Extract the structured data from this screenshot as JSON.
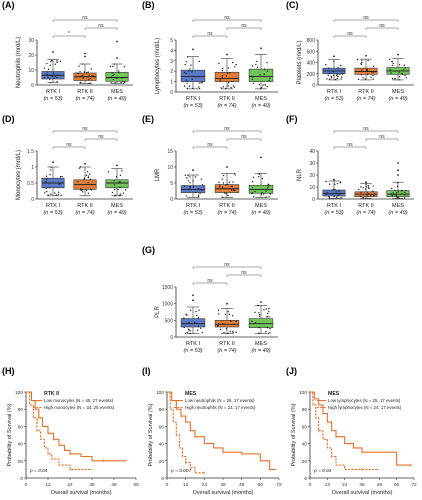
{
  "colors": {
    "rtk1": "#5b78c4",
    "rtk2": "#e07d3a",
    "mes": "#72c45a",
    "km": "#e0702a",
    "axis": "#333333",
    "bracket": "#555555"
  },
  "groups": [
    {
      "name": "RTK I",
      "n_label": "(n = 53)"
    },
    {
      "name": "RTK II",
      "n_label": "(n = 74)"
    },
    {
      "name": "MES",
      "n_label": "(n = 49)"
    }
  ],
  "chart_data": [
    {
      "type": "box",
      "panel": "(A)",
      "ylabel": "Neutrophils (mrd/L)",
      "ylim": [
        0,
        30
      ],
      "yticks": [
        0,
        10,
        20,
        30
      ],
      "boxes": [
        {
          "q1": 4,
          "median": 6.5,
          "q3": 9,
          "wlo": 1.5,
          "whi": 17
        },
        {
          "q1": 3,
          "median": 5.5,
          "q3": 8,
          "wlo": 1,
          "whi": 14
        },
        {
          "q1": 2.5,
          "median": 5,
          "q3": 8.5,
          "wlo": 1,
          "whi": 14
        }
      ],
      "outliers": [
        [
          22
        ],
        [
          19,
          21
        ],
        [
          18,
          29
        ]
      ],
      "significance": [
        {
          "a": 0,
          "b": 1,
          "label": "*"
        },
        {
          "a": 0,
          "b": 2,
          "label": "ns"
        },
        {
          "a": 1,
          "b": 2,
          "label": "ns"
        }
      ]
    },
    {
      "type": "box",
      "panel": "(B)",
      "ylabel": "Lymphocytes (mrd/L)",
      "ylim": [
        0,
        5
      ],
      "yticks": [
        0,
        1,
        2,
        3,
        4,
        5
      ],
      "boxes": [
        {
          "q1": 1.0,
          "median": 1.5,
          "q3": 2.1,
          "wlo": 0.3,
          "whi": 3.4
        },
        {
          "q1": 1.0,
          "median": 1.3,
          "q3": 1.9,
          "wlo": 0.3,
          "whi": 3.2
        },
        {
          "q1": 1.0,
          "median": 1.5,
          "q3": 2.2,
          "wlo": 0.3,
          "whi": 3.6
        }
      ],
      "outliers": [
        [
          4.1
        ],
        [
          3.6
        ],
        [
          4.2
        ]
      ],
      "significance": [
        {
          "a": 0,
          "b": 1,
          "label": "ns"
        },
        {
          "a": 0,
          "b": 2,
          "label": "ns"
        },
        {
          "a": 1,
          "b": 2,
          "label": "ns"
        }
      ]
    },
    {
      "type": "box",
      "panel": "(C)",
      "ylabel": "Platelets (mrd/L)",
      "ylim": [
        0,
        800
      ],
      "yticks": [
        0,
        200,
        400,
        600,
        800
      ],
      "boxes": [
        {
          "q1": 200,
          "median": 250,
          "q3": 300,
          "wlo": 90,
          "whi": 450
        },
        {
          "q1": 190,
          "median": 240,
          "q3": 300,
          "wlo": 90,
          "whi": 460
        },
        {
          "q1": 190,
          "median": 250,
          "q3": 310,
          "wlo": 90,
          "whi": 470
        }
      ],
      "outliers": [
        [
          510
        ],
        [
          520
        ],
        [
          540
        ]
      ],
      "significance": [
        {
          "a": 0,
          "b": 1,
          "label": "ns"
        },
        {
          "a": 0,
          "b": 2,
          "label": "ns"
        },
        {
          "a": 1,
          "b": 2,
          "label": "ns"
        }
      ]
    },
    {
      "type": "box",
      "panel": "(D)",
      "ylabel": "Monocytes (mrd/L)",
      "ylim": [
        0,
        1.5
      ],
      "yticks": [
        0,
        0.5,
        1,
        1.5
      ],
      "boxes": [
        {
          "q1": 0.35,
          "median": 0.5,
          "q3": 0.65,
          "wlo": 0.1,
          "whi": 1.0
        },
        {
          "q1": 0.3,
          "median": 0.45,
          "q3": 0.6,
          "wlo": 0.1,
          "whi": 1.0
        },
        {
          "q1": 0.35,
          "median": 0.5,
          "q3": 0.6,
          "wlo": 0.1,
          "whi": 0.95
        }
      ],
      "outliers": [
        [
          1.15
        ],
        [
          1.1
        ],
        [
          1.05
        ]
      ],
      "significance": [
        {
          "a": 0,
          "b": 1,
          "label": "ns"
        },
        {
          "a": 0,
          "b": 2,
          "label": "ns"
        },
        {
          "a": 1,
          "b": 2,
          "label": "ns"
        }
      ]
    },
    {
      "type": "box",
      "panel": "(E)",
      "ylabel": "LMR",
      "ylim": [
        0,
        15
      ],
      "yticks": [
        0,
        5,
        10,
        15
      ],
      "boxes": [
        {
          "q1": 2,
          "median": 3,
          "q3": 4.2,
          "wlo": 0.5,
          "whi": 7.5
        },
        {
          "q1": 2,
          "median": 3.2,
          "q3": 4.5,
          "wlo": 0.5,
          "whi": 8
        },
        {
          "q1": 1.8,
          "median": 3,
          "q3": 4.3,
          "wlo": 0.5,
          "whi": 8
        }
      ],
      "outliers": [
        [
          9
        ],
        [
          10
        ],
        [
          13
        ]
      ],
      "significance": [
        {
          "a": 0,
          "b": 1,
          "label": "ns"
        },
        {
          "a": 0,
          "b": 2,
          "label": "ns"
        },
        {
          "a": 1,
          "b": 2,
          "label": "ns"
        }
      ]
    },
    {
      "type": "box",
      "panel": "(F)",
      "ylabel": "NLR",
      "ylim": [
        0,
        40
      ],
      "yticks": [
        0,
        10,
        20,
        30,
        40
      ],
      "boxes": [
        {
          "q1": 2.5,
          "median": 4.5,
          "q3": 7.5,
          "wlo": 0.5,
          "whi": 15
        },
        {
          "q1": 2,
          "median": 4,
          "q3": 6,
          "wlo": 0.5,
          "whi": 13
        },
        {
          "q1": 2,
          "median": 4,
          "q3": 7,
          "wlo": 0.5,
          "whi": 14
        }
      ],
      "outliers": [
        [
          16
        ],
        [
          14
        ],
        [
          20,
          24,
          30
        ]
      ],
      "significance": [
        {
          "a": 0,
          "b": 1,
          "label": "ns"
        },
        {
          "a": 0,
          "b": 2,
          "label": "ns"
        },
        {
          "a": 1,
          "b": 2,
          "label": "ns"
        }
      ]
    },
    {
      "type": "box",
      "panel": "(G)",
      "ylabel": "PLR",
      "ylim": [
        0,
        1500
      ],
      "yticks": [
        0,
        500,
        1000,
        1500
      ],
      "boxes": [
        {
          "q1": 300,
          "median": 400,
          "q3": 550,
          "wlo": 100,
          "whi": 900
        },
        {
          "q1": 300,
          "median": 380,
          "q3": 500,
          "wlo": 100,
          "whi": 850
        },
        {
          "q1": 280,
          "median": 400,
          "q3": 550,
          "wlo": 100,
          "whi": 950
        }
      ],
      "outliers": [
        [
          1100,
          1250
        ],
        [
          1000
        ],
        [
          1050
        ]
      ],
      "significance": [
        {
          "a": 0,
          "b": 1,
          "label": "ns"
        },
        {
          "a": 0,
          "b": 2,
          "label": "ns"
        },
        {
          "a": 1,
          "b": 2,
          "label": "ns"
        }
      ]
    },
    {
      "type": "line",
      "panel": "(H)",
      "title": "RTK II",
      "ylabel": "Probability of Survival (%)",
      "xlabel": "Overall survival (months)",
      "xlim": [
        0,
        60
      ],
      "xticks": [
        0,
        12,
        24,
        36,
        48,
        60
      ],
      "ylim": [
        0,
        100
      ],
      "yticks": [
        0,
        20,
        40,
        60,
        80,
        100
      ],
      "pvalue": "p = 0.04",
      "series": [
        {
          "name": "Low monocytes (N = 40, 27 events)",
          "style": "solid",
          "x": [
            0,
            3,
            5,
            7,
            9,
            12,
            15,
            18,
            21,
            24,
            30,
            36,
            42,
            55
          ],
          "y": [
            100,
            90,
            80,
            70,
            60,
            52,
            45,
            38,
            32,
            28,
            25,
            20,
            20,
            20
          ]
        },
        {
          "name": "High monocytes (N = 34, 26 events)",
          "style": "dashed",
          "x": [
            0,
            2,
            4,
            6,
            8,
            10,
            12,
            14,
            18,
            24,
            36
          ],
          "y": [
            100,
            85,
            70,
            55,
            45,
            35,
            28,
            22,
            15,
            10,
            10
          ]
        }
      ]
    },
    {
      "type": "line",
      "panel": "(I)",
      "title": "MES",
      "ylabel": "Probability of Survival (%)",
      "xlabel": "Overall survival (months)",
      "xlim": [
        0,
        72
      ],
      "xticks": [
        0,
        12,
        24,
        36,
        48,
        60,
        72
      ],
      "ylim": [
        0,
        100
      ],
      "yticks": [
        0,
        20,
        40,
        60,
        80,
        100
      ],
      "pvalue": "p = 0.007",
      "series": [
        {
          "name": "Low neutrophils (N = 26, 17 events)",
          "style": "solid",
          "x": [
            0,
            3,
            6,
            9,
            12,
            15,
            18,
            24,
            30,
            36,
            48,
            60,
            66,
            70
          ],
          "y": [
            100,
            90,
            80,
            72,
            65,
            55,
            48,
            40,
            35,
            30,
            28,
            20,
            10,
            10
          ]
        },
        {
          "name": "High neutrophils (N = 23, 17 events)",
          "style": "dashed",
          "x": [
            0,
            2,
            4,
            6,
            8,
            10,
            12,
            15,
            18,
            24
          ],
          "y": [
            100,
            80,
            65,
            50,
            35,
            25,
            18,
            12,
            6,
            6
          ]
        }
      ]
    },
    {
      "type": "line",
      "panel": "(J)",
      "title": "MES",
      "ylabel": "Probability of Survival (%)",
      "xlabel": "Overall survival (months)",
      "xlim": [
        0,
        72
      ],
      "xticks": [
        0,
        12,
        24,
        36,
        48,
        60,
        72
      ],
      "ylim": [
        0,
        100
      ],
      "yticks": [
        0,
        20,
        40,
        60,
        80,
        100
      ],
      "pvalue": "p = 0.04",
      "series": [
        {
          "name": "Low lymphocytes (N = 25, 17 events)",
          "style": "solid",
          "x": [
            0,
            3,
            6,
            9,
            12,
            15,
            18,
            24,
            30,
            36,
            48,
            60,
            70
          ],
          "y": [
            100,
            92,
            85,
            75,
            65,
            55,
            48,
            40,
            35,
            30,
            30,
            15,
            15
          ]
        },
        {
          "name": "High lymphocytes (N = 24, 17 events)",
          "style": "dashed",
          "x": [
            0,
            2,
            4,
            6,
            9,
            12,
            15,
            18,
            24,
            36,
            48
          ],
          "y": [
            100,
            85,
            70,
            55,
            45,
            35,
            25,
            15,
            10,
            10,
            10
          ]
        }
      ]
    }
  ]
}
